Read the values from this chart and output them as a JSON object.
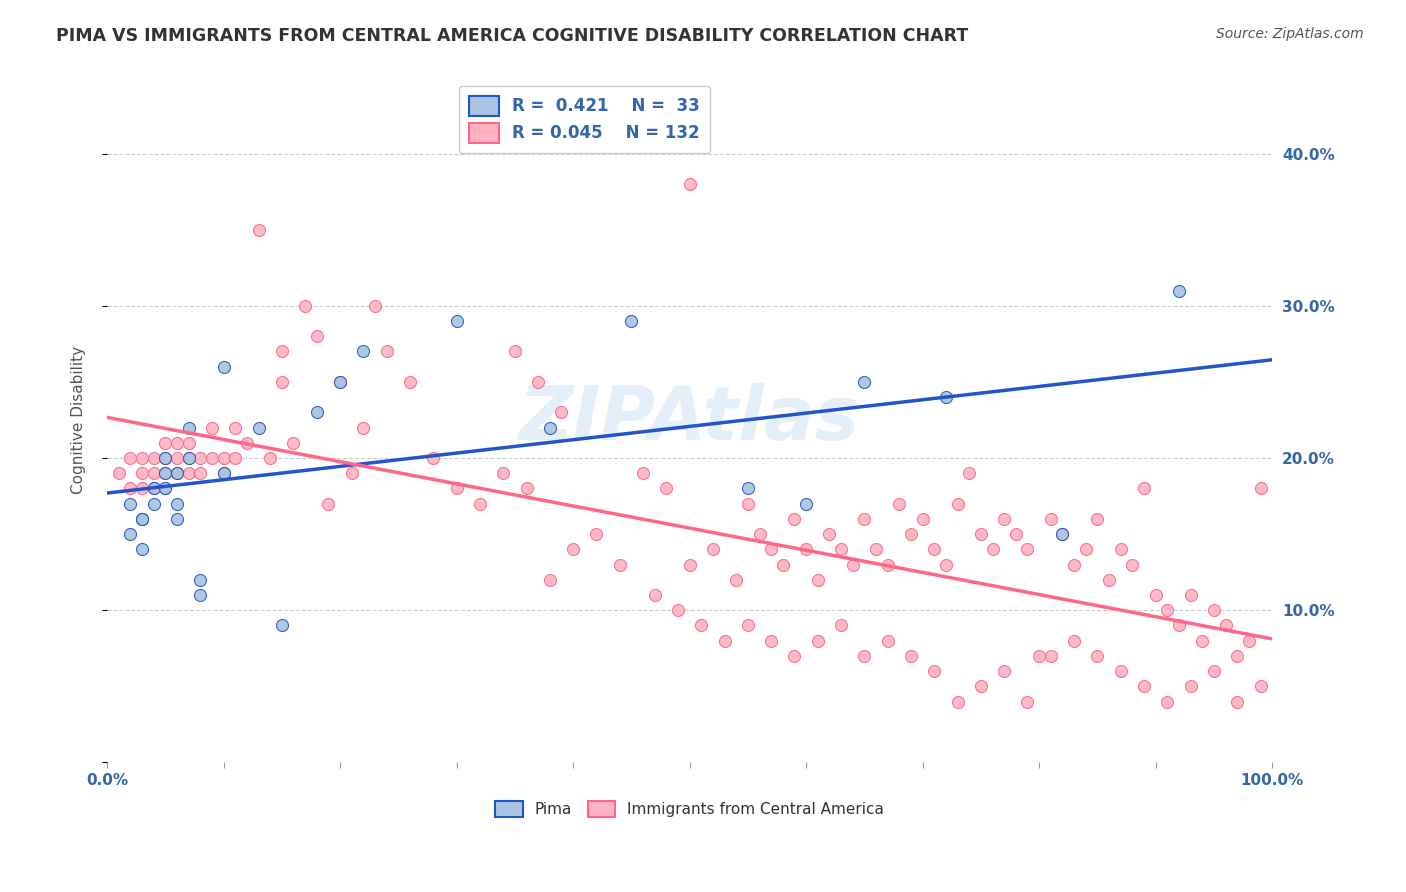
{
  "title": "PIMA VS IMMIGRANTS FROM CENTRAL AMERICA COGNITIVE DISABILITY CORRELATION CHART",
  "source": "Source: ZipAtlas.com",
  "ylabel": "Cognitive Disability",
  "watermark": "ZIPAtlas",
  "pima_R": 0.421,
  "pima_N": 33,
  "immigrants_R": 0.045,
  "immigrants_N": 132,
  "pima_color": "#A8C4E0",
  "immigrants_color": "#FFB3C1",
  "trend_blue": "#2255CC",
  "trend_pink": "#FF6688",
  "pima_x": [
    0.02,
    0.03,
    0.03,
    0.04,
    0.04,
    0.05,
    0.05,
    0.05,
    0.06,
    0.06,
    0.06,
    0.07,
    0.07,
    0.08,
    0.08,
    0.1,
    0.1,
    0.13,
    0.15,
    0.18,
    0.2,
    0.22,
    0.3,
    0.38,
    0.45,
    0.55,
    0.6,
    0.65,
    0.72,
    0.82,
    0.92,
    0.02,
    0.03
  ],
  "pima_y": [
    0.17,
    0.14,
    0.16,
    0.18,
    0.17,
    0.19,
    0.18,
    0.2,
    0.17,
    0.16,
    0.19,
    0.22,
    0.2,
    0.12,
    0.11,
    0.19,
    0.26,
    0.22,
    0.09,
    0.23,
    0.25,
    0.27,
    0.29,
    0.22,
    0.29,
    0.18,
    0.17,
    0.25,
    0.24,
    0.15,
    0.31,
    0.15,
    0.16
  ],
  "immigrants_x": [
    0.01,
    0.02,
    0.02,
    0.03,
    0.03,
    0.03,
    0.04,
    0.04,
    0.04,
    0.05,
    0.05,
    0.05,
    0.05,
    0.06,
    0.06,
    0.06,
    0.07,
    0.07,
    0.07,
    0.08,
    0.08,
    0.09,
    0.09,
    0.1,
    0.1,
    0.11,
    0.11,
    0.12,
    0.13,
    0.14,
    0.15,
    0.15,
    0.16,
    0.17,
    0.18,
    0.19,
    0.2,
    0.21,
    0.22,
    0.23,
    0.24,
    0.26,
    0.28,
    0.3,
    0.32,
    0.34,
    0.36,
    0.38,
    0.4,
    0.42,
    0.44,
    0.46,
    0.48,
    0.5,
    0.5,
    0.52,
    0.54,
    0.55,
    0.56,
    0.57,
    0.58,
    0.59,
    0.6,
    0.61,
    0.62,
    0.63,
    0.64,
    0.65,
    0.66,
    0.67,
    0.68,
    0.69,
    0.7,
    0.71,
    0.72,
    0.73,
    0.74,
    0.75,
    0.76,
    0.77,
    0.78,
    0.79,
    0.8,
    0.81,
    0.82,
    0.83,
    0.84,
    0.85,
    0.86,
    0.87,
    0.88,
    0.89,
    0.9,
    0.91,
    0.92,
    0.93,
    0.94,
    0.95,
    0.96,
    0.97,
    0.98,
    0.99,
    0.47,
    0.49,
    0.51,
    0.53,
    0.55,
    0.57,
    0.59,
    0.61,
    0.63,
    0.65,
    0.67,
    0.69,
    0.71,
    0.73,
    0.75,
    0.77,
    0.79,
    0.81,
    0.83,
    0.85,
    0.87,
    0.89,
    0.91,
    0.93,
    0.95,
    0.97,
    0.99,
    0.35,
    0.37,
    0.39
  ],
  "immigrants_y": [
    0.19,
    0.2,
    0.18,
    0.2,
    0.19,
    0.18,
    0.19,
    0.2,
    0.18,
    0.2,
    0.19,
    0.21,
    0.18,
    0.2,
    0.19,
    0.21,
    0.21,
    0.2,
    0.19,
    0.2,
    0.19,
    0.2,
    0.22,
    0.2,
    0.19,
    0.2,
    0.22,
    0.21,
    0.35,
    0.2,
    0.27,
    0.25,
    0.21,
    0.3,
    0.28,
    0.17,
    0.25,
    0.19,
    0.22,
    0.3,
    0.27,
    0.25,
    0.2,
    0.18,
    0.17,
    0.19,
    0.18,
    0.12,
    0.14,
    0.15,
    0.13,
    0.19,
    0.18,
    0.13,
    0.38,
    0.14,
    0.12,
    0.17,
    0.15,
    0.14,
    0.13,
    0.16,
    0.14,
    0.12,
    0.15,
    0.14,
    0.13,
    0.16,
    0.14,
    0.13,
    0.17,
    0.15,
    0.16,
    0.14,
    0.13,
    0.17,
    0.19,
    0.15,
    0.14,
    0.16,
    0.15,
    0.14,
    0.07,
    0.16,
    0.15,
    0.13,
    0.14,
    0.16,
    0.12,
    0.14,
    0.13,
    0.18,
    0.11,
    0.1,
    0.09,
    0.11,
    0.08,
    0.1,
    0.09,
    0.07,
    0.08,
    0.18,
    0.11,
    0.1,
    0.09,
    0.08,
    0.09,
    0.08,
    0.07,
    0.08,
    0.09,
    0.07,
    0.08,
    0.07,
    0.06,
    0.04,
    0.05,
    0.06,
    0.04,
    0.07,
    0.08,
    0.07,
    0.06,
    0.05,
    0.04,
    0.05,
    0.06,
    0.04,
    0.05,
    0.27,
    0.25,
    0.23
  ],
  "xlim": [
    0.0,
    1.0
  ],
  "ylim": [
    0.0,
    0.45
  ],
  "xticks": [
    0.0,
    0.1,
    0.2,
    0.3,
    0.4,
    0.5,
    0.6,
    0.7,
    0.8,
    0.9,
    1.0
  ],
  "yticks": [
    0.0,
    0.1,
    0.2,
    0.3,
    0.4
  ],
  "ytick_labels": [
    "",
    "10.0%",
    "20.0%",
    "30.0%",
    "40.0%"
  ],
  "xtick_labels": [
    "0.0%",
    "",
    "",
    "",
    "",
    "",
    "",
    "",
    "",
    "",
    "100.0%"
  ],
  "grid_color": "#CCCCCC",
  "bg_color": "#FFFFFF",
  "title_color": "#333333"
}
